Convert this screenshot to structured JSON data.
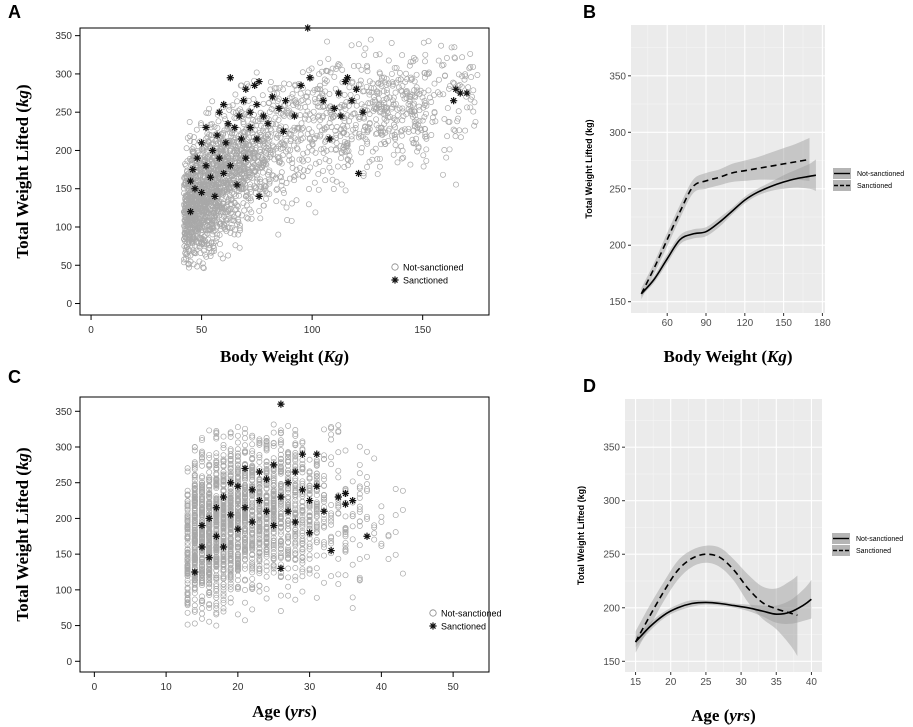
{
  "chart_data": [
    {
      "panel": "A",
      "type": "scatter",
      "xlabel_main": "Body Weight (",
      "xlabel_unit": "Kg",
      "xlabel_end": ")",
      "ylabel_main": "Total Weight Lifted (",
      "ylabel_unit": "kg",
      "ylabel_end": ")",
      "xlim": [
        -5,
        180
      ],
      "ylim": [
        -15,
        360
      ],
      "xticks": [
        0,
        50,
        100,
        150
      ],
      "yticks": [
        0,
        50,
        100,
        150,
        200,
        250,
        300,
        350
      ],
      "legend": [
        "Not-sanctioned",
        "Sanctioned"
      ],
      "series": [
        {
          "name": "Not-sanctioned",
          "marker": "circle",
          "approx_count": 4000,
          "shape": "x 35-175 kg; y ranges ~70-340 kg, rising with body weight"
        },
        {
          "name": "Sanctioned",
          "marker": "asterisk",
          "points": [
            [
              45,
              120
            ],
            [
              45,
              160
            ],
            [
              46,
              175
            ],
            [
              47,
              150
            ],
            [
              48,
              190
            ],
            [
              50,
              210
            ],
            [
              50,
              145
            ],
            [
              52,
              180
            ],
            [
              52,
              230
            ],
            [
              54,
              165
            ],
            [
              55,
              200
            ],
            [
              56,
              140
            ],
            [
              57,
              220
            ],
            [
              58,
              190
            ],
            [
              58,
              250
            ],
            [
              60,
              170
            ],
            [
              60,
              260
            ],
            [
              61,
              210
            ],
            [
              62,
              235
            ],
            [
              63,
              180
            ],
            [
              63,
              295
            ],
            [
              65,
              230
            ],
            [
              66,
              155
            ],
            [
              67,
              245
            ],
            [
              68,
              215
            ],
            [
              69,
              265
            ],
            [
              70,
              190
            ],
            [
              70,
              280
            ],
            [
              72,
              250
            ],
            [
              72,
              230
            ],
            [
              74,
              285
            ],
            [
              75,
              215
            ],
            [
              75,
              260
            ],
            [
              76,
              290
            ],
            [
              76,
              140
            ],
            [
              78,
              245
            ],
            [
              80,
              235
            ],
            [
              82,
              270
            ],
            [
              85,
              255
            ],
            [
              87,
              225
            ],
            [
              88,
              265
            ],
            [
              92,
              245
            ],
            [
              95,
              285
            ],
            [
              98,
              360
            ],
            [
              99,
              295
            ],
            [
              105,
              265
            ],
            [
              108,
              215
            ],
            [
              110,
              255
            ],
            [
              112,
              275
            ],
            [
              113,
              245
            ],
            [
              115,
              290
            ],
            [
              116,
              295
            ],
            [
              118,
              265
            ],
            [
              120,
              280
            ],
            [
              121,
              170
            ],
            [
              123,
              250
            ],
            [
              164,
              265
            ],
            [
              165,
              280
            ],
            [
              167,
              275
            ],
            [
              170,
              275
            ]
          ]
        }
      ]
    },
    {
      "panel": "B",
      "type": "line",
      "xlabel_main": "Body Weight (",
      "xlabel_unit": "Kg",
      "xlabel_end": ")",
      "ylabel": "Total Weight Lifted (kg)",
      "xlim": [
        32,
        182
      ],
      "ylim": [
        140,
        395
      ],
      "xticks": [
        60,
        90,
        120,
        150,
        180
      ],
      "yticks": [
        150,
        200,
        250,
        300,
        350
      ],
      "legend": [
        "Not-sanctioned",
        "Sanctioned"
      ],
      "series": [
        {
          "name": "Not-sanctioned",
          "style": "solid",
          "x": [
            40,
            50,
            60,
            70,
            80,
            90,
            100,
            110,
            120,
            130,
            140,
            150,
            160,
            170,
            175
          ],
          "y": [
            157,
            170,
            188,
            205,
            210,
            212,
            220,
            230,
            240,
            247,
            252,
            256,
            259,
            261,
            262
          ],
          "band_lower": [
            155,
            167,
            184,
            201,
            206,
            208,
            216,
            227,
            237,
            244,
            248,
            250,
            251,
            250,
            248
          ],
          "band_upper": [
            159,
            173,
            192,
            209,
            214,
            216,
            224,
            233,
            243,
            250,
            256,
            262,
            267,
            272,
            276
          ]
        },
        {
          "name": "Sanctioned",
          "style": "dashed",
          "x": [
            40,
            50,
            60,
            70,
            80,
            90,
            100,
            110,
            120,
            130,
            140,
            150,
            160,
            170
          ],
          "y": [
            157,
            180,
            205,
            230,
            252,
            257,
            260,
            264,
            266,
            268,
            270,
            272,
            274,
            276
          ],
          "band_lower": [
            152,
            175,
            199,
            224,
            246,
            250,
            253,
            256,
            257,
            258,
            258,
            258,
            258,
            257
          ],
          "band_upper": [
            162,
            185,
            211,
            236,
            258,
            264,
            267,
            272,
            275,
            278,
            282,
            286,
            290,
            295
          ]
        }
      ]
    },
    {
      "panel": "C",
      "type": "scatter",
      "xlabel_main": "Age (",
      "xlabel_unit": "yrs",
      "xlabel_end": ")",
      "ylabel_main": "Total Weight Lifted (",
      "ylabel_unit": "kg",
      "ylabel_end": ")",
      "xlim": [
        -2,
        55
      ],
      "ylim": [
        -15,
        370
      ],
      "xticks": [
        0,
        10,
        20,
        30,
        40,
        50
      ],
      "yticks": [
        0,
        50,
        100,
        150,
        200,
        250,
        300,
        350
      ],
      "legend": [
        "Not-sanctioned",
        "Sanctioned"
      ],
      "series": [
        {
          "name": "Not-sanctioned",
          "marker": "circle",
          "approx_count": 4000,
          "shape": "integer ages 12-45; y ranges ~50-330 kg"
        },
        {
          "name": "Sanctioned",
          "marker": "asterisk",
          "points": [
            [
              14,
              125
            ],
            [
              15,
              190
            ],
            [
              15,
              160
            ],
            [
              16,
              145
            ],
            [
              16,
              200
            ],
            [
              17,
              215
            ],
            [
              17,
              175
            ],
            [
              18,
              230
            ],
            [
              18,
              160
            ],
            [
              19,
              205
            ],
            [
              19,
              250
            ],
            [
              20,
              185
            ],
            [
              20,
              245
            ],
            [
              21,
              215
            ],
            [
              21,
              270
            ],
            [
              22,
              195
            ],
            [
              22,
              240
            ],
            [
              23,
              225
            ],
            [
              23,
              265
            ],
            [
              24,
              210
            ],
            [
              24,
              255
            ],
            [
              25,
              190
            ],
            [
              25,
              275
            ],
            [
              26,
              360
            ],
            [
              26,
              230
            ],
            [
              26,
              130
            ],
            [
              27,
              250
            ],
            [
              27,
              210
            ],
            [
              28,
              265
            ],
            [
              28,
              195
            ],
            [
              29,
              240
            ],
            [
              29,
              290
            ],
            [
              30,
              225
            ],
            [
              30,
              180
            ],
            [
              31,
              245
            ],
            [
              31,
              290
            ],
            [
              32,
              210
            ],
            [
              33,
              155
            ],
            [
              34,
              230
            ],
            [
              35,
              220
            ],
            [
              35,
              235
            ],
            [
              36,
              225
            ],
            [
              38,
              175
            ]
          ]
        }
      ]
    },
    {
      "panel": "D",
      "type": "line",
      "xlabel_main": "Age (",
      "xlabel_unit": "yrs",
      "xlabel_end": ")",
      "ylabel": "Total Weight Lifted (kg)",
      "xlim": [
        13.5,
        41.5
      ],
      "ylim": [
        140,
        395
      ],
      "xticks": [
        15,
        20,
        25,
        30,
        35,
        40
      ],
      "yticks": [
        150,
        200,
        250,
        300,
        350
      ],
      "legend": [
        "Not-sanctioned",
        "Sanctioned"
      ],
      "series": [
        {
          "name": "Not-sanctioned",
          "style": "solid",
          "x": [
            15,
            17,
            19,
            21,
            23,
            25,
            27,
            29,
            31,
            33,
            35,
            37,
            39,
            40
          ],
          "y": [
            168,
            182,
            193,
            200,
            204,
            205,
            204,
            202,
            200,
            197,
            194,
            196,
            203,
            208
          ],
          "band_lower": [
            163,
            178,
            190,
            197,
            201,
            203,
            202,
            200,
            197,
            192,
            186,
            185,
            188,
            190
          ],
          "band_upper": [
            173,
            186,
            196,
            203,
            207,
            207,
            206,
            204,
            203,
            202,
            202,
            207,
            218,
            226
          ]
        },
        {
          "name": "Sanctioned",
          "style": "dashed",
          "x": [
            15,
            17,
            19,
            21,
            23,
            25,
            27,
            29,
            31,
            33,
            35,
            37,
            38
          ],
          "y": [
            168,
            192,
            215,
            235,
            246,
            250,
            247,
            235,
            218,
            205,
            199,
            195,
            193
          ],
          "band_lower": [
            158,
            182,
            206,
            226,
            238,
            242,
            238,
            225,
            205,
            190,
            180,
            165,
            155
          ],
          "band_upper": [
            178,
            202,
            224,
            244,
            254,
            258,
            256,
            245,
            231,
            220,
            218,
            225,
            230
          ]
        }
      ]
    }
  ]
}
